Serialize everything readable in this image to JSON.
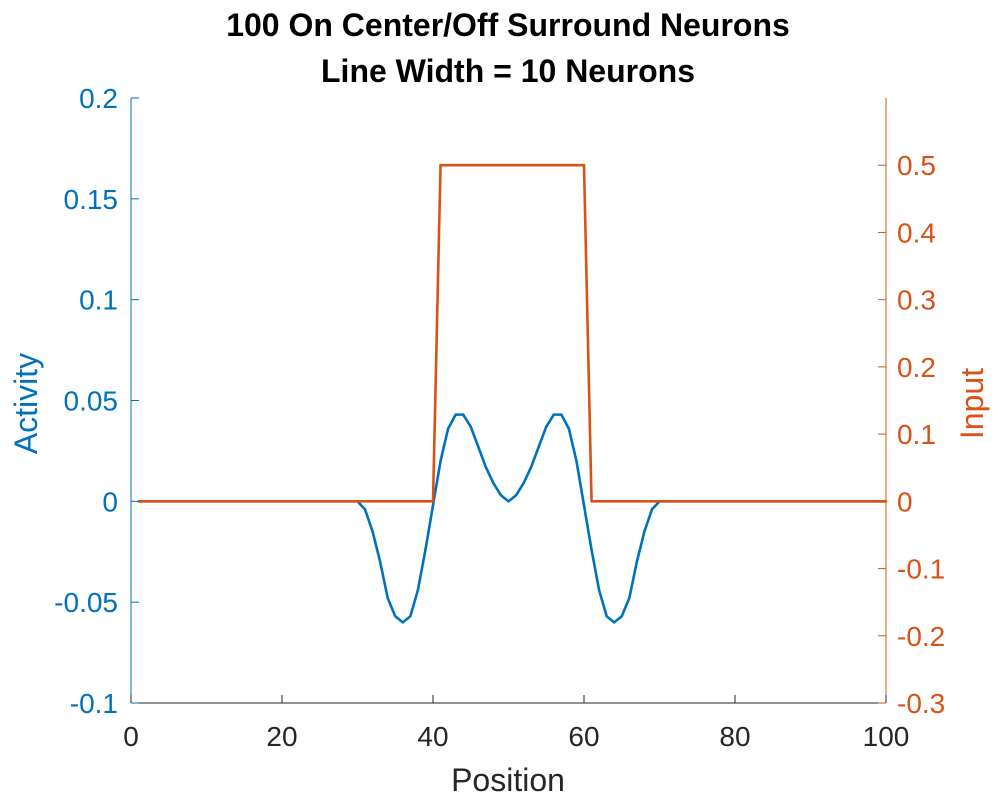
{
  "chart_data": {
    "type": "line",
    "title": [
      "100 On Center/Off Surround Neurons",
      "Line Width = 10 Neurons"
    ],
    "xlabel": "Position",
    "ylabel_left": "Activity",
    "ylabel_right": "Input",
    "xlim": [
      0,
      100
    ],
    "ylim_left": [
      -0.1,
      0.2
    ],
    "ylim_right": [
      -0.3,
      0.6
    ],
    "xticks": [
      0,
      20,
      40,
      60,
      80,
      100
    ],
    "xtick_labels": [
      "0",
      "20",
      "40",
      "60",
      "80",
      "100"
    ],
    "yticks_left": [
      -0.1,
      -0.05,
      0,
      0.05,
      0.1,
      0.15,
      0.2
    ],
    "ytick_labels_left": [
      "-0.1",
      "-0.05",
      "0",
      "0.05",
      "0.1",
      "0.15",
      "0.2"
    ],
    "yticks_right": [
      -0.3,
      -0.2,
      -0.1,
      0,
      0.1,
      0.2,
      0.3,
      0.4,
      0.5
    ],
    "ytick_labels_right": [
      "-0.3",
      "-0.2",
      "-0.1",
      "0",
      "0.1",
      "0.2",
      "0.3",
      "0.4",
      "0.5"
    ],
    "grid": false,
    "colors": {
      "left": "#0072BD",
      "right": "#D95319"
    },
    "series": [
      {
        "axis": "left",
        "x": [
          1,
          2,
          3,
          4,
          5,
          6,
          7,
          8,
          9,
          10,
          11,
          12,
          13,
          14,
          15,
          16,
          17,
          18,
          19,
          20,
          21,
          22,
          23,
          24,
          25,
          26,
          27,
          28,
          29,
          30,
          31,
          32,
          33,
          34,
          35,
          36,
          37,
          38,
          39,
          40,
          41,
          42,
          43,
          44,
          45,
          46,
          47,
          48,
          49,
          50,
          51,
          52,
          53,
          54,
          55,
          56,
          57,
          58,
          59,
          60,
          61,
          62,
          63,
          64,
          65,
          66,
          67,
          68,
          69,
          70,
          71,
          72,
          73,
          74,
          75,
          76,
          77,
          78,
          79,
          80,
          81,
          82,
          83,
          84,
          85,
          86,
          87,
          88,
          89,
          90,
          91,
          92,
          93,
          94,
          95,
          96,
          97,
          98,
          99,
          100
        ],
        "values": [
          0,
          0,
          0,
          0,
          0,
          0,
          0,
          0,
          0,
          0,
          0,
          0,
          0,
          0,
          0,
          0,
          0,
          0,
          0,
          0,
          0,
          0,
          0,
          0,
          0,
          0,
          0,
          0,
          0,
          0,
          -0.004,
          -0.015,
          -0.03,
          -0.048,
          -0.057,
          -0.06,
          -0.057,
          -0.044,
          -0.024,
          -0.002,
          0.02,
          0.036,
          0.043,
          0.043,
          0.037,
          0.027,
          0.017,
          0.009,
          0.003,
          0,
          0.003,
          0.009,
          0.017,
          0.027,
          0.037,
          0.043,
          0.043,
          0.036,
          0.02,
          -0.002,
          -0.024,
          -0.044,
          -0.057,
          -0.06,
          -0.057,
          -0.048,
          -0.03,
          -0.015,
          -0.004,
          0,
          0,
          0,
          0,
          0,
          0,
          0,
          0,
          0,
          0,
          0,
          0,
          0,
          0,
          0,
          0,
          0,
          0,
          0,
          0,
          0,
          0,
          0,
          0,
          0,
          0,
          0,
          0,
          0,
          0,
          0
        ]
      },
      {
        "axis": "right",
        "x": [
          1,
          40,
          41,
          60,
          61,
          100
        ],
        "values": [
          0,
          0,
          0.5,
          0.5,
          0,
          0
        ]
      }
    ]
  }
}
